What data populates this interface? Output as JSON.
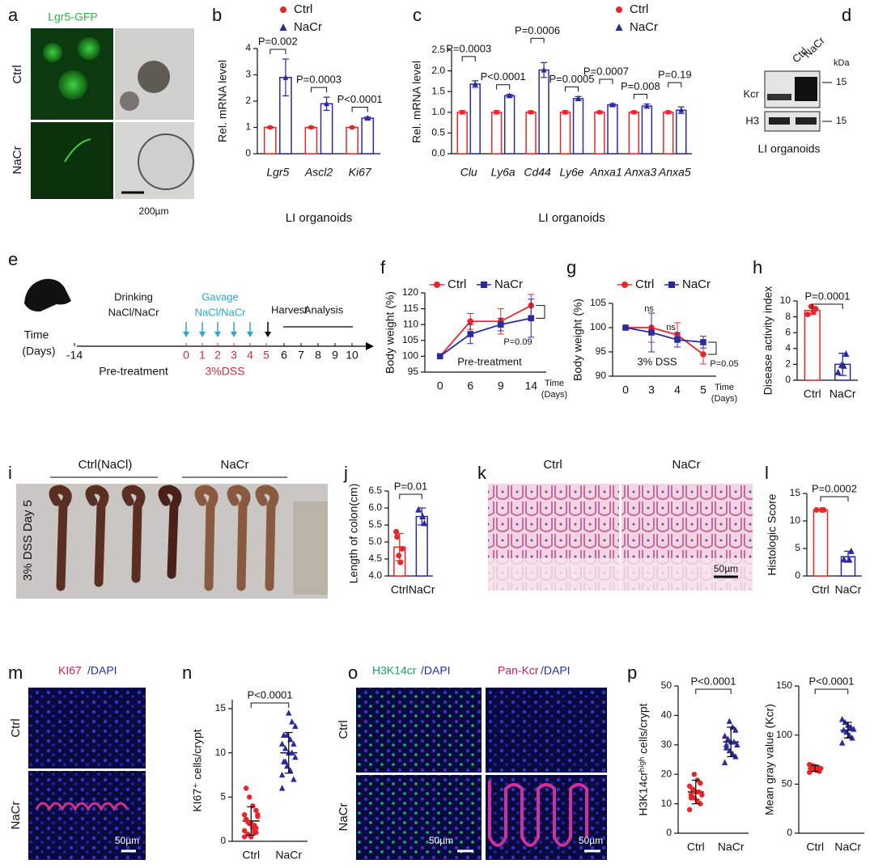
{
  "panel_a": {
    "letter": "a",
    "title": "Lgr5-GFP",
    "rows": [
      "Ctrl",
      "NaCr"
    ],
    "scale_bar": "200µm"
  },
  "panel_d": {
    "letter": "d",
    "lanes": [
      "Ctrl",
      "NaCr"
    ],
    "unit": "kDa",
    "rows": [
      "Kcr",
      "H3"
    ],
    "markers": [
      15,
      15
    ],
    "caption": "LI organoids"
  },
  "panel_e": {
    "letter": "e",
    "time_label": [
      "Time",
      "(Days)"
    ],
    "ticks": [
      -14,
      0,
      1,
      2,
      3,
      4,
      5,
      6,
      7,
      8,
      9,
      10
    ],
    "drinking": [
      "Drinking",
      "NaCl/NaCr"
    ],
    "gavage": [
      "Gavage",
      "NaCl/NaCr"
    ],
    "harvest": "Harvest",
    "analysis": "Analysis",
    "pretreatment": "Pre-treatment",
    "dss": "3%DSS"
  },
  "panel_i": {
    "letter": "i",
    "groups": [
      "Ctrl(NaCl)",
      "NaCr"
    ],
    "side": "3% DSS Day 5"
  },
  "panel_k": {
    "letter": "k",
    "columns": [
      "Ctrl",
      "NaCr"
    ],
    "scale_bar": "50µm"
  },
  "panel_m": {
    "letter": "m",
    "title": [
      "KI67",
      "/DAPI"
    ],
    "rows": [
      "Ctrl",
      "NaCr"
    ],
    "scale_bar": "50µm"
  },
  "panel_o": {
    "letter": "o",
    "columns": [
      [
        "H3K14cr",
        "/DAPI"
      ],
      [
        "Pan-Kcr",
        "/DAPI"
      ]
    ],
    "rows": [
      "Ctrl",
      "NaCr"
    ],
    "scale_bars": [
      "50µm",
      "50µm"
    ]
  },
  "chart_data": [
    {
      "type": "bar",
      "label": "b",
      "ylabel": "Rel. mRNA level",
      "xlabel": "LI organoids",
      "categories": [
        "Lgr5",
        "Ascl2",
        "Ki67"
      ],
      "series": [
        {
          "name": "Ctrl",
          "color": "#e8262a",
          "values": [
            1,
            1,
            1
          ],
          "errors": [
            0.03,
            0.03,
            0.02
          ]
        },
        {
          "name": "NaCr",
          "color": "#2a2a9e",
          "values": [
            2.9,
            1.9,
            1.35
          ],
          "errors": [
            0.7,
            0.25,
            0.05
          ]
        }
      ],
      "pvalues": [
        "P=0.002",
        "P=0.0003",
        "P<0.0001"
      ],
      "ylim": [
        0,
        4
      ],
      "yticks": [
        0,
        1,
        2,
        3,
        4
      ]
    },
    {
      "type": "bar",
      "label": "c",
      "ylabel": "Rel. mRNA level",
      "xlabel": "LI organoids",
      "categories": [
        "Clu",
        "Ly6a",
        "Cd44",
        "Ly6e",
        "Anxa1",
        "Anxa3",
        "Anxa5"
      ],
      "series": [
        {
          "name": "Ctrl",
          "color": "#e8262a",
          "values": [
            1,
            1,
            1,
            1,
            1,
            1,
            1
          ],
          "errors": [
            0.04,
            0.04,
            0.03,
            0.04,
            0.03,
            0.03,
            0.03
          ]
        },
        {
          "name": "NaCr",
          "color": "#2a2a9e",
          "values": [
            1.68,
            1.4,
            2.02,
            1.33,
            1.18,
            1.15,
            1.05
          ],
          "errors": [
            0.08,
            0.03,
            0.18,
            0.05,
            0.03,
            0.05,
            0.08
          ]
        }
      ],
      "pvalues": [
        "P=0.0003",
        "P<0.0001",
        "P=0.0006",
        "P=0.0005",
        "P=0.0007",
        "P=0.008",
        "P=0.19"
      ],
      "ylim": [
        0,
        2.5
      ],
      "yticks": [
        {
          "value": 0,
          "label": "0.0"
        },
        0.5,
        {
          "value": 1,
          "label": "1.0"
        },
        1.5,
        {
          "value": 2,
          "label": "2.0"
        },
        2.5
      ]
    },
    {
      "type": "line",
      "label": "f",
      "ylabel": "Body weight (%)",
      "xlabel": [
        "Time",
        "(Days)"
      ],
      "categories": [
        0,
        6,
        9,
        14
      ],
      "series": [
        {
          "name": "Ctrl",
          "color": "#e8262a",
          "values": [
            100,
            111,
            111,
            116
          ],
          "errors": [
            0,
            2.5,
            4,
            3.5
          ]
        },
        {
          "name": "NaCr",
          "color": "#2a2a9e",
          "values": [
            100,
            107,
            110,
            112
          ],
          "errors": [
            0,
            3,
            2,
            6
          ]
        }
      ],
      "annotations": [
        "P=0.09",
        "Pre-treatment"
      ],
      "ylim": [
        95,
        120
      ],
      "yticks": [
        95,
        100,
        105,
        110,
        115,
        120
      ]
    },
    {
      "type": "line",
      "label": "g",
      "ylabel": "Body weight (%)",
      "xlabel": [
        "Time",
        "(Days)"
      ],
      "categories": [
        0,
        3,
        4,
        5
      ],
      "series": [
        {
          "name": "Ctrl",
          "color": "#e8262a",
          "values": [
            100,
            100,
            98.5,
            94.5
          ],
          "errors": [
            0,
            3,
            2.5,
            2
          ]
        },
        {
          "name": "NaCr",
          "color": "#2a2a9e",
          "values": [
            100,
            99,
            97.5,
            97
          ],
          "errors": [
            0,
            4,
            1.5,
            1.2
          ]
        }
      ],
      "annotations": [
        "ns",
        "ns",
        "P=0.05",
        "3% DSS"
      ],
      "ylim": [
        90,
        105
      ],
      "yticks": [
        90,
        95,
        100,
        105
      ]
    },
    {
      "type": "bar",
      "label": "h",
      "ylabel": "Disease activity index",
      "categories": [
        "Ctrl",
        "NaCr"
      ],
      "colors": [
        "#e8262a",
        "#2a2a9e"
      ],
      "values": [
        8.8,
        2
      ],
      "errors": [
        0.5,
        1.4
      ],
      "points": [
        [
          8.3,
          9,
          8.6,
          9.3
        ],
        [
          1,
          3.3,
          1.8,
          1.9
        ]
      ],
      "pvalue": "P=0.0001",
      "ylim": [
        0,
        10
      ],
      "yticks": [
        0,
        2,
        4,
        6,
        8,
        10
      ]
    },
    {
      "type": "bar",
      "label": "j",
      "ylabel": "Length of colon(cm)",
      "categories": [
        "Ctrl",
        "NaCr"
      ],
      "colors": [
        "#e8262a",
        "#2a2a9e"
      ],
      "values": [
        4.85,
        5.75
      ],
      "errors": [
        0.4,
        0.25
      ],
      "points": [
        [
          5.3,
          4.8,
          4.4,
          4.6,
          5.15
        ],
        [
          5.95,
          5.55,
          5.75
        ]
      ],
      "pvalue": "P=0.01",
      "ylim": [
        4,
        6.5
      ],
      "yticks": [
        {
          "value": 4,
          "label": "4.0"
        },
        4.5,
        {
          "value": 5,
          "label": "5.0"
        },
        5.5,
        {
          "value": 6,
          "label": "6.0"
        },
        6.5
      ]
    },
    {
      "type": "bar",
      "label": "l",
      "ylabel": "Histologic Score",
      "categories": [
        "Ctrl",
        "NaCr"
      ],
      "colors": [
        "#e8262a",
        "#2a2a9e"
      ],
      "values": [
        12,
        3.5
      ],
      "errors": [
        0,
        1
      ],
      "points": [
        [
          12,
          12,
          12
        ],
        [
          3,
          4.5,
          3
        ]
      ],
      "pvalue": "P=0.0002",
      "ylim": [
        0,
        15
      ],
      "yticks": [
        0,
        5,
        10,
        15
      ]
    },
    {
      "type": "dot",
      "label": "n",
      "ylabel": "KI67⁺ cells/crypt",
      "categories": [
        "Ctrl",
        "NaCr"
      ],
      "colors": [
        "#e8262a",
        "#2a2a9e"
      ],
      "values": [
        2.3,
        10
      ],
      "errors": [
        1.6,
        2.3
      ],
      "points": [
        [
          0.5,
          1,
          1.5,
          2,
          2.5,
          3,
          1,
          2,
          0.8,
          1.2,
          3.5,
          4,
          5,
          6,
          2.8,
          1.8,
          0.5,
          2.2,
          3,
          1.5
        ],
        [
          6,
          7,
          8,
          8.5,
          9,
          9.5,
          10,
          10,
          10.5,
          11,
          11,
          11.5,
          12,
          12,
          13,
          13.5,
          14.5,
          9,
          7.5
        ]
      ],
      "pvalue": "P<0.0001",
      "ylim": [
        0,
        16
      ],
      "yticks": [
        0,
        5,
        10,
        15
      ]
    },
    {
      "type": "dot",
      "label": "p",
      "ylabel": "H3K14crʰⁱᵍʰ cells/crypt",
      "categories": [
        "Ctrl",
        "NaCr"
      ],
      "colors": [
        "#e8262a",
        "#2a2a9e"
      ],
      "values": [
        14,
        31
      ],
      "errors": [
        4,
        5
      ],
      "points": [
        [
          8,
          10,
          11,
          12,
          13,
          13,
          14,
          14,
          15,
          16,
          17,
          18,
          20,
          12
        ],
        [
          24,
          26,
          27,
          28,
          29,
          30,
          31,
          31,
          32,
          33,
          35,
          36,
          38,
          30
        ]
      ],
      "pvalue": "P<0.0001",
      "ylim": [
        0,
        50
      ],
      "yticks": [
        0,
        10,
        20,
        30,
        40,
        50
      ]
    },
    {
      "type": "dot",
      "ylabel": "Mean gray value (Kcr)",
      "categories": [
        "Ctrl",
        "NaCr"
      ],
      "colors": [
        "#e8262a",
        "#2a2a9e"
      ],
      "values": [
        66,
        105
      ],
      "errors": [
        3,
        8
      ],
      "points": [
        [
          62,
          63,
          64,
          65,
          66,
          66,
          67,
          68,
          69,
          70
        ],
        [
          92,
          97,
          100,
          103,
          105,
          106,
          108,
          110,
          113,
          116
        ]
      ],
      "pvalue": "P<0.0001",
      "ylim": [
        0,
        150
      ],
      "yticks": [
        0,
        50,
        100,
        150
      ]
    }
  ]
}
